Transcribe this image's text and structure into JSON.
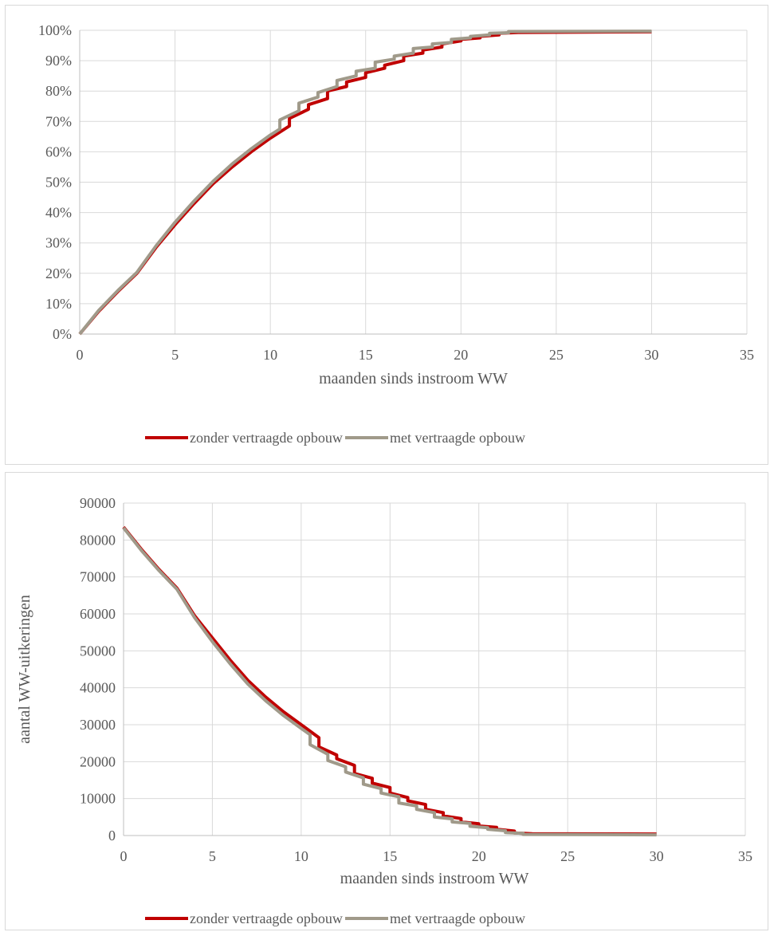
{
  "chart_data": [
    {
      "type": "line",
      "xlabel": "maanden sinds instroom WW",
      "ylabel": "",
      "xlim": [
        0,
        35
      ],
      "ylim": [
        0,
        100
      ],
      "x_ticks": [
        0,
        5,
        10,
        15,
        20,
        25,
        30,
        35
      ],
      "y_ticks": [
        0,
        10,
        20,
        30,
        40,
        50,
        60,
        70,
        80,
        90,
        100
      ],
      "y_tick_labels": [
        "0%",
        "10%",
        "20%",
        "30%",
        "40%",
        "50%",
        "60%",
        "70%",
        "80%",
        "90%",
        "100%"
      ],
      "grid": true,
      "legend_position": "bottom",
      "series": [
        {
          "name": "zonder vertraagde opbouw",
          "color": "#c00000",
          "points": [
            [
              0,
              0
            ],
            [
              1,
              7.5
            ],
            [
              2,
              14
            ],
            [
              3,
              20
            ],
            [
              4,
              28.5
            ],
            [
              5,
              36
            ],
            [
              6,
              43
            ],
            [
              7,
              49.5
            ],
            [
              8,
              55
            ],
            [
              9,
              60
            ],
            [
              10,
              64.5
            ],
            [
              11,
              68.5
            ],
            [
              11,
              71
            ],
            [
              12,
              74
            ],
            [
              12,
              75.5
            ],
            [
              13,
              77.5
            ],
            [
              13,
              80
            ],
            [
              14,
              81.5
            ],
            [
              14,
              83
            ],
            [
              15,
              84.5
            ],
            [
              15,
              86
            ],
            [
              16,
              87.5
            ],
            [
              16,
              88.5
            ],
            [
              17,
              90
            ],
            [
              17,
              91.5
            ],
            [
              18,
              92.5
            ],
            [
              18,
              93.5
            ],
            [
              19,
              94.5
            ],
            [
              19,
              95.5
            ],
            [
              20,
              96.5
            ],
            [
              20,
              97
            ],
            [
              21,
              97.5
            ],
            [
              21,
              98
            ],
            [
              22,
              98.5
            ],
            [
              22,
              99
            ],
            [
              23,
              99.3
            ],
            [
              30,
              99.5
            ]
          ]
        },
        {
          "name": "met vertraagde opbouw",
          "color": "#a09a8a",
          "points": [
            [
              0,
              0
            ],
            [
              1,
              7.8
            ],
            [
              2,
              14.3
            ],
            [
              3,
              20.3
            ],
            [
              4,
              29
            ],
            [
              5,
              36.8
            ],
            [
              6,
              43.8
            ],
            [
              7,
              50.3
            ],
            [
              8,
              56
            ],
            [
              9,
              61
            ],
            [
              10,
              65.5
            ],
            [
              10.5,
              67.5
            ],
            [
              10.5,
              70.5
            ],
            [
              11.5,
              73.5
            ],
            [
              11.5,
              76
            ],
            [
              12.5,
              78
            ],
            [
              12.5,
              79.5
            ],
            [
              13.5,
              81.5
            ],
            [
              13.5,
              83.5
            ],
            [
              14.5,
              85
            ],
            [
              14.5,
              86.5
            ],
            [
              15.5,
              87.5
            ],
            [
              15.5,
              89.5
            ],
            [
              16.5,
              90.5
            ],
            [
              16.5,
              91.5
            ],
            [
              17.5,
              92.5
            ],
            [
              17.5,
              94
            ],
            [
              18.5,
              94.5
            ],
            [
              18.5,
              95.5
            ],
            [
              19.5,
              96
            ],
            [
              19.5,
              97
            ],
            [
              20.5,
              97.5
            ],
            [
              20.5,
              98
            ],
            [
              21.5,
              98.5
            ],
            [
              21.5,
              99
            ],
            [
              22.5,
              99.2
            ],
            [
              22.5,
              99.6
            ],
            [
              30,
              99.7
            ]
          ]
        }
      ]
    },
    {
      "type": "line",
      "xlabel": "maanden sinds instroom WW",
      "ylabel": "aantal WW-uitkeringen",
      "xlim": [
        0,
        35
      ],
      "ylim": [
        0,
        90000
      ],
      "x_ticks": [
        0,
        5,
        10,
        15,
        20,
        25,
        30,
        35
      ],
      "y_ticks": [
        0,
        10000,
        20000,
        30000,
        40000,
        50000,
        60000,
        70000,
        80000,
        90000
      ],
      "y_tick_labels": [
        "0",
        "10000",
        "20000",
        "30000",
        "40000",
        "50000",
        "60000",
        "70000",
        "80000",
        "90000"
      ],
      "grid": true,
      "legend_position": "bottom",
      "series": [
        {
          "name": "zonder vertraagde opbouw",
          "color": "#c00000",
          "points": [
            [
              0,
              83500
            ],
            [
              1,
              77500
            ],
            [
              2,
              72000
            ],
            [
              3,
              67000
            ],
            [
              4,
              59500
            ],
            [
              5,
              53500
            ],
            [
              6,
              47500
            ],
            [
              7,
              42000
            ],
            [
              8,
              37500
            ],
            [
              9,
              33500
            ],
            [
              10,
              30000
            ],
            [
              11,
              26500
            ],
            [
              11,
              24000
            ],
            [
              12,
              21800
            ],
            [
              12,
              20800
            ],
            [
              13,
              19000
            ],
            [
              13,
              16800
            ],
            [
              14,
              15500
            ],
            [
              14,
              14200
            ],
            [
              15,
              13000
            ],
            [
              15,
              11500
            ],
            [
              16,
              10300
            ],
            [
              16,
              9400
            ],
            [
              17,
              8400
            ],
            [
              17,
              7100
            ],
            [
              18,
              6200
            ],
            [
              18,
              5300
            ],
            [
              19,
              4600
            ],
            [
              19,
              3700
            ],
            [
              20,
              3200
            ],
            [
              20,
              2600
            ],
            [
              21,
              2200
            ],
            [
              21,
              1700
            ],
            [
              22,
              1200
            ],
            [
              22,
              700
            ],
            [
              23,
              500
            ],
            [
              30,
              400
            ]
          ]
        },
        {
          "name": "met vertraagde opbouw",
          "color": "#a09a8a",
          "points": [
            [
              0,
              83300
            ],
            [
              1,
              77200
            ],
            [
              2,
              71700
            ],
            [
              3,
              66700
            ],
            [
              4,
              59000
            ],
            [
              5,
              52500
            ],
            [
              6,
              46500
            ],
            [
              7,
              41000
            ],
            [
              8,
              36500
            ],
            [
              9,
              32500
            ],
            [
              10,
              29000
            ],
            [
              10.5,
              27300
            ],
            [
              10.5,
              24600
            ],
            [
              11.5,
              22000
            ],
            [
              11.5,
              20300
            ],
            [
              12.5,
              18600
            ],
            [
              12.5,
              17200
            ],
            [
              13.5,
              15600
            ],
            [
              13.5,
              13900
            ],
            [
              14.5,
              12700
            ],
            [
              14.5,
              11500
            ],
            [
              15.5,
              10500
            ],
            [
              15.5,
              8800
            ],
            [
              16.5,
              8000
            ],
            [
              16.5,
              7100
            ],
            [
              17.5,
              6200
            ],
            [
              17.5,
              5000
            ],
            [
              18.5,
              4500
            ],
            [
              18.5,
              3700
            ],
            [
              19.5,
              3300
            ],
            [
              19.5,
              2500
            ],
            [
              20.5,
              2100
            ],
            [
              20.5,
              1700
            ],
            [
              21.5,
              1300
            ],
            [
              21.5,
              800
            ],
            [
              22.5,
              600
            ],
            [
              22.5,
              300
            ],
            [
              30,
              200
            ]
          ]
        }
      ]
    }
  ]
}
